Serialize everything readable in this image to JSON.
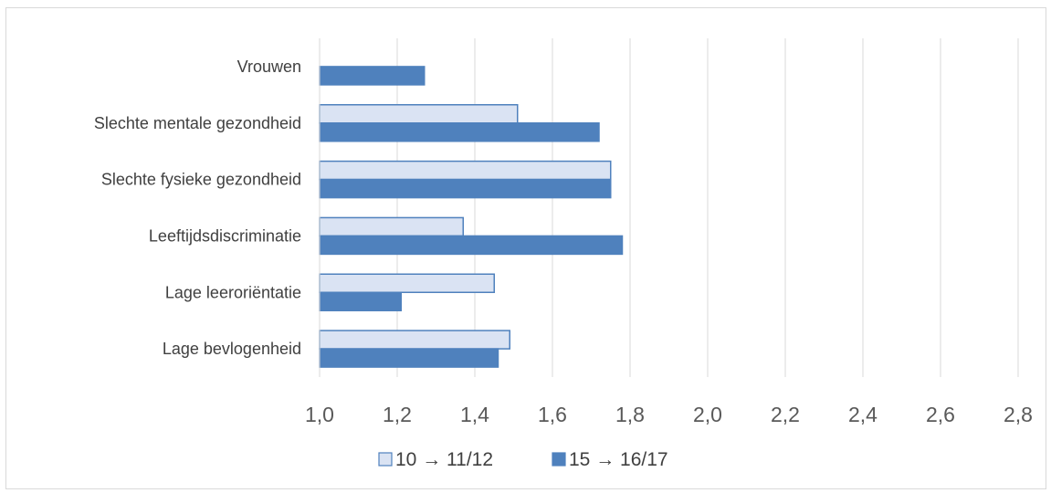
{
  "chart_data": {
    "type": "bar",
    "orientation": "horizontal",
    "categories": [
      "Vrouwen",
      "Slechte mentale gezondheid",
      "Slechte fysieke gezondheid",
      "Leeftijdsdiscriminatie",
      "Lage leeroriëntatie",
      "Lage bevlogenheid"
    ],
    "series": [
      {
        "name": "10 → 11/12",
        "color": "#dae3f3",
        "stroke": "#4f81bd",
        "values": [
          null,
          1.51,
          1.75,
          1.37,
          1.45,
          1.49
        ]
      },
      {
        "name": "15 → 16/17",
        "color": "#4f81bd",
        "stroke": "#4f81bd",
        "values": [
          1.27,
          1.72,
          1.75,
          1.78,
          1.21,
          1.46
        ]
      }
    ],
    "xlim": [
      1.0,
      2.8
    ],
    "xticks": [
      "1,0",
      "1,2",
      "1,4",
      "1,6",
      "1,8",
      "2,0",
      "2,2",
      "2,4",
      "2,6",
      "2,8"
    ],
    "grid": true,
    "legend": "bottom"
  }
}
